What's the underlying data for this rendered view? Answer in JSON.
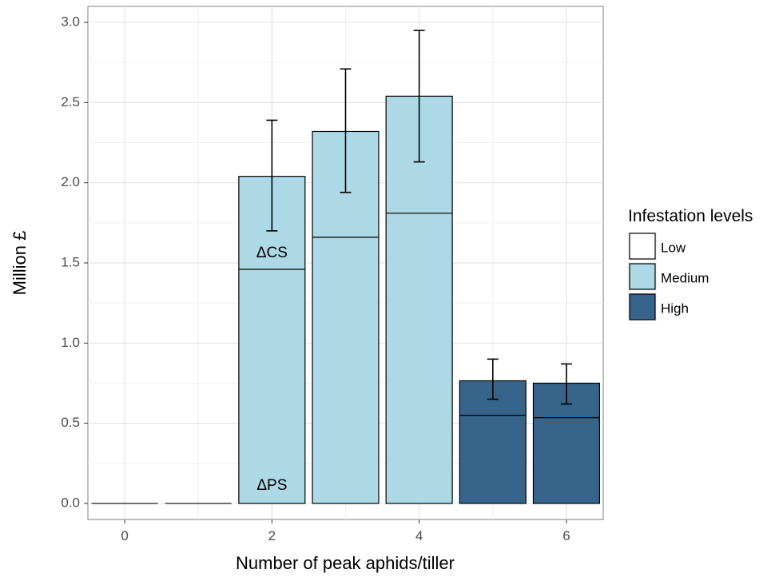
{
  "chart_data": {
    "type": "bar",
    "xlabel": "Number of peak aphids/tiller",
    "ylabel": "Million £",
    "xlim": [
      -0.5,
      6.5
    ],
    "ylim": [
      -0.1,
      3.1
    ],
    "x_ticks": [
      0,
      2,
      4,
      6
    ],
    "y_ticks": [
      0.0,
      0.5,
      1.0,
      1.5,
      2.0,
      2.5,
      3.0
    ],
    "y_tick_labels": [
      "0.0",
      "0.5",
      "1.0",
      "1.5",
      "2.0",
      "2.5",
      "3.0"
    ],
    "grid": true,
    "legend": {
      "title": "Infestation levels",
      "position": "right",
      "entries": [
        {
          "label": "Low",
          "color": "#ffffff"
        },
        {
          "label": "Medium",
          "color": "#add8e6"
        },
        {
          "label": "High",
          "color": "#36648b"
        }
      ]
    },
    "bars": [
      {
        "x": 0,
        "total": 0.0,
        "split": 0.0,
        "level": "Low"
      },
      {
        "x": 1,
        "total": 0.0,
        "split": 0.0,
        "level": "Low"
      },
      {
        "x": 2,
        "total": 2.04,
        "split": 1.46,
        "level": "Medium",
        "err_low": 1.7,
        "err_high": 2.39
      },
      {
        "x": 3,
        "total": 2.32,
        "split": 1.66,
        "level": "Medium",
        "err_low": 1.94,
        "err_high": 2.71
      },
      {
        "x": 4,
        "total": 2.54,
        "split": 1.81,
        "level": "Medium",
        "err_low": 2.13,
        "err_high": 2.95
      },
      {
        "x": 5,
        "total": 0.765,
        "split": 0.55,
        "level": "High",
        "err_low": 0.65,
        "err_high": 0.9
      },
      {
        "x": 6,
        "total": 0.75,
        "split": 0.535,
        "level": "High",
        "err_low": 0.62,
        "err_high": 0.87
      }
    ],
    "annotations": [
      {
        "text": "ΔCS",
        "x": 2,
        "y": 1.56
      },
      {
        "text": "ΔPS",
        "x": 2,
        "y": 0.11
      }
    ]
  }
}
